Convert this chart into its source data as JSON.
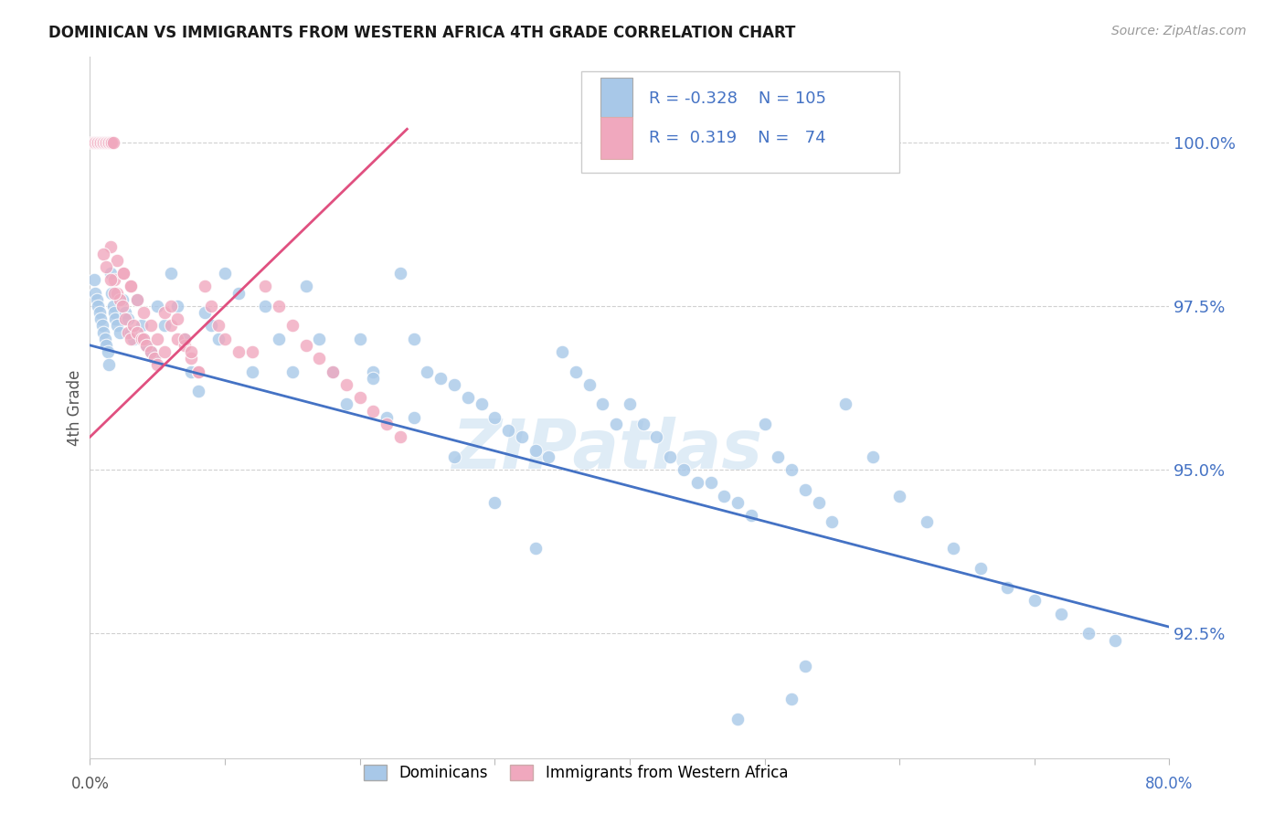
{
  "title": "DOMINICAN VS IMMIGRANTS FROM WESTERN AFRICA 4TH GRADE CORRELATION CHART",
  "source": "Source: ZipAtlas.com",
  "ylabel": "4th Grade",
  "y_tick_labels": [
    "92.5%",
    "95.0%",
    "97.5%",
    "100.0%"
  ],
  "y_tick_values": [
    0.925,
    0.95,
    0.975,
    1.0
  ],
  "x_min": 0.0,
  "x_max": 0.8,
  "y_min": 0.906,
  "y_max": 1.013,
  "blue_R": -0.328,
  "blue_N": 105,
  "pink_R": 0.319,
  "pink_N": 74,
  "blue_color": "#a8c8e8",
  "pink_color": "#f0a8be",
  "blue_line_color": "#4472C4",
  "pink_line_color": "#E05080",
  "legend_blue_label": "Dominicans",
  "legend_pink_label": "Immigrants from Western Africa",
  "watermark": "ZIPatlas",
  "blue_trend_x0": 0.0,
  "blue_trend_x1": 0.8,
  "blue_trend_y0": 0.969,
  "blue_trend_y1": 0.926,
  "pink_trend_x0": 0.0,
  "pink_trend_x1": 0.235,
  "pink_trend_y0": 0.955,
  "pink_trend_y1": 1.002,
  "blue_x": [
    0.003,
    0.004,
    0.005,
    0.006,
    0.007,
    0.008,
    0.009,
    0.01,
    0.011,
    0.012,
    0.013,
    0.014,
    0.015,
    0.016,
    0.017,
    0.018,
    0.019,
    0.02,
    0.022,
    0.024,
    0.026,
    0.028,
    0.03,
    0.032,
    0.035,
    0.038,
    0.04,
    0.042,
    0.045,
    0.048,
    0.05,
    0.055,
    0.06,
    0.065,
    0.07,
    0.075,
    0.08,
    0.085,
    0.09,
    0.095,
    0.1,
    0.11,
    0.12,
    0.13,
    0.14,
    0.15,
    0.16,
    0.17,
    0.18,
    0.19,
    0.2,
    0.21,
    0.22,
    0.23,
    0.24,
    0.25,
    0.26,
    0.27,
    0.28,
    0.29,
    0.3,
    0.31,
    0.32,
    0.33,
    0.34,
    0.35,
    0.36,
    0.37,
    0.38,
    0.39,
    0.4,
    0.41,
    0.42,
    0.43,
    0.44,
    0.45,
    0.46,
    0.47,
    0.48,
    0.49,
    0.5,
    0.51,
    0.52,
    0.53,
    0.54,
    0.55,
    0.56,
    0.58,
    0.6,
    0.62,
    0.64,
    0.66,
    0.68,
    0.7,
    0.72,
    0.74,
    0.76,
    0.52,
    0.48,
    0.53,
    0.21,
    0.24,
    0.27,
    0.3,
    0.33
  ],
  "blue_y": [
    0.979,
    0.977,
    0.976,
    0.975,
    0.974,
    0.973,
    0.972,
    0.971,
    0.97,
    0.969,
    0.968,
    0.966,
    0.98,
    0.977,
    0.975,
    0.974,
    0.973,
    0.972,
    0.971,
    0.976,
    0.974,
    0.973,
    0.971,
    0.97,
    0.976,
    0.972,
    0.97,
    0.969,
    0.968,
    0.967,
    0.975,
    0.972,
    0.98,
    0.975,
    0.97,
    0.965,
    0.962,
    0.974,
    0.972,
    0.97,
    0.98,
    0.977,
    0.965,
    0.975,
    0.97,
    0.965,
    0.978,
    0.97,
    0.965,
    0.96,
    0.97,
    0.965,
    0.958,
    0.98,
    0.97,
    0.965,
    0.964,
    0.963,
    0.961,
    0.96,
    0.958,
    0.956,
    0.955,
    0.953,
    0.952,
    0.968,
    0.965,
    0.963,
    0.96,
    0.957,
    0.96,
    0.957,
    0.955,
    0.952,
    0.95,
    0.948,
    0.948,
    0.946,
    0.945,
    0.943,
    0.957,
    0.952,
    0.95,
    0.947,
    0.945,
    0.942,
    0.96,
    0.952,
    0.946,
    0.942,
    0.938,
    0.935,
    0.932,
    0.93,
    0.928,
    0.925,
    0.924,
    0.915,
    0.912,
    0.92,
    0.964,
    0.958,
    0.952,
    0.945,
    0.938
  ],
  "pink_x": [
    0.002,
    0.003,
    0.004,
    0.005,
    0.006,
    0.007,
    0.008,
    0.009,
    0.01,
    0.011,
    0.012,
    0.013,
    0.014,
    0.015,
    0.016,
    0.017,
    0.018,
    0.02,
    0.022,
    0.024,
    0.026,
    0.028,
    0.03,
    0.032,
    0.035,
    0.038,
    0.04,
    0.042,
    0.045,
    0.048,
    0.05,
    0.055,
    0.06,
    0.065,
    0.07,
    0.075,
    0.08,
    0.085,
    0.09,
    0.095,
    0.1,
    0.11,
    0.12,
    0.13,
    0.14,
    0.15,
    0.16,
    0.17,
    0.18,
    0.19,
    0.2,
    0.21,
    0.22,
    0.23,
    0.025,
    0.03,
    0.035,
    0.04,
    0.045,
    0.05,
    0.055,
    0.06,
    0.065,
    0.07,
    0.075,
    0.08,
    0.015,
    0.02,
    0.025,
    0.03,
    0.01,
    0.012,
    0.015,
    0.018
  ],
  "pink_y": [
    1.0,
    1.0,
    1.0,
    1.0,
    1.0,
    1.0,
    1.0,
    1.0,
    1.0,
    1.0,
    1.0,
    1.0,
    1.0,
    1.0,
    1.0,
    1.0,
    0.979,
    0.977,
    0.976,
    0.975,
    0.973,
    0.971,
    0.97,
    0.972,
    0.971,
    0.97,
    0.97,
    0.969,
    0.968,
    0.967,
    0.966,
    0.974,
    0.972,
    0.97,
    0.969,
    0.967,
    0.965,
    0.978,
    0.975,
    0.972,
    0.97,
    0.968,
    0.968,
    0.978,
    0.975,
    0.972,
    0.969,
    0.967,
    0.965,
    0.963,
    0.961,
    0.959,
    0.957,
    0.955,
    0.98,
    0.978,
    0.976,
    0.974,
    0.972,
    0.97,
    0.968,
    0.975,
    0.973,
    0.97,
    0.968,
    0.965,
    0.984,
    0.982,
    0.98,
    0.978,
    0.983,
    0.981,
    0.979,
    0.977
  ]
}
